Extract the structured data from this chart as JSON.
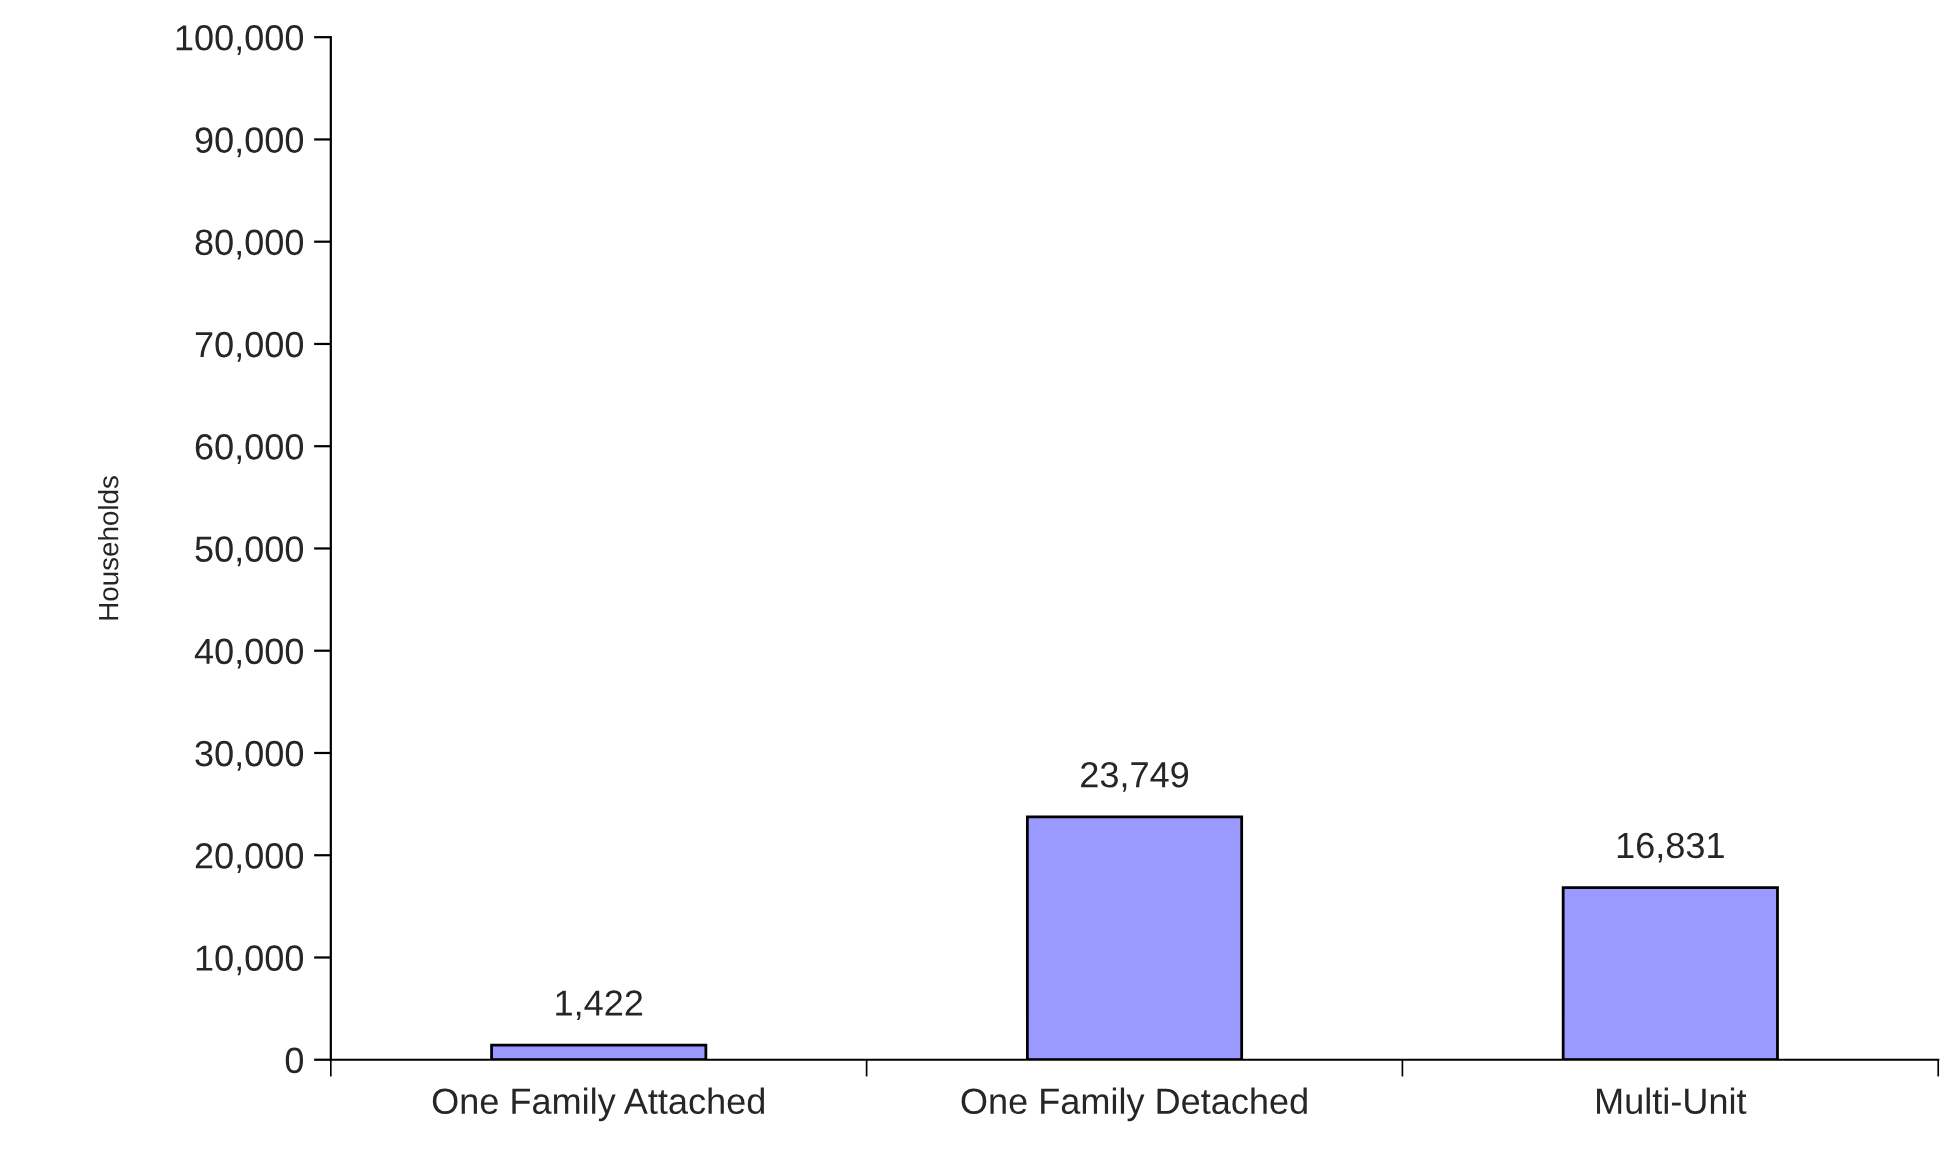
{
  "chart_data": {
    "type": "bar",
    "ylabel": "Households",
    "categories": [
      "One Family Attached",
      "One Family Detached",
      "Multi-Unit"
    ],
    "values": [
      1422,
      23749,
      16831
    ],
    "value_labels": [
      "1,422",
      "23,749",
      "16,831"
    ],
    "color": "#9999ff",
    "ylim": [
      0,
      100000
    ],
    "yticks": [
      {
        "value": 0,
        "label": "0"
      },
      {
        "value": 10000,
        "label": "10,000"
      },
      {
        "value": 20000,
        "label": "20,000"
      },
      {
        "value": 30000,
        "label": "30,000"
      },
      {
        "value": 40000,
        "label": "40,000"
      },
      {
        "value": 50000,
        "label": "50,000"
      },
      {
        "value": 60000,
        "label": "60,000"
      },
      {
        "value": 70000,
        "label": "70,000"
      },
      {
        "value": 80000,
        "label": "80,000"
      },
      {
        "value": 90000,
        "label": "90,000"
      },
      {
        "value": 100000,
        "label": "100,000"
      }
    ],
    "grid": false
  }
}
